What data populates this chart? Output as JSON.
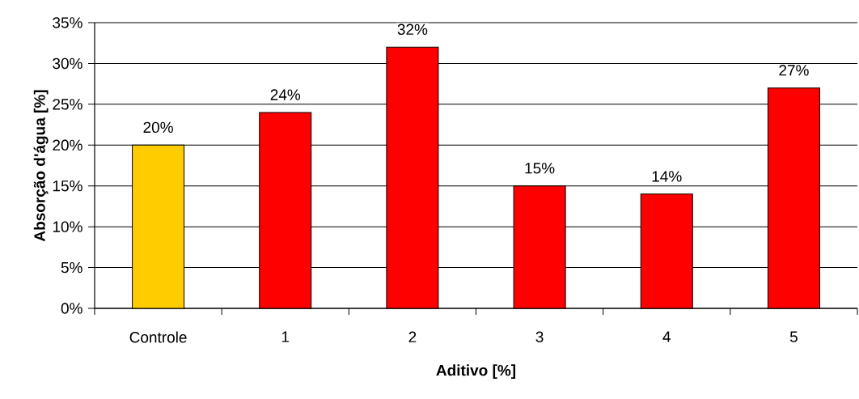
{
  "chart_data": {
    "type": "bar",
    "xlabel": "Aditivo [%]",
    "ylabel": "Absorção d'água  [%]",
    "categories": [
      "Controle",
      "1",
      "2",
      "3",
      "4",
      "5"
    ],
    "values": [
      20,
      24,
      32,
      15,
      14,
      27
    ],
    "colors": [
      "#ffcc00",
      "#ff0000",
      "#ff0000",
      "#ff0000",
      "#ff0000",
      "#ff0000"
    ],
    "value_labels": [
      "20%",
      "24%",
      "32%",
      "15%",
      "14%",
      "27%"
    ],
    "ylim": [
      0,
      35
    ],
    "yticks": [
      {
        "value": 0,
        "label": "0%"
      },
      {
        "value": 5,
        "label": "5%"
      },
      {
        "value": 10,
        "label": "10%"
      },
      {
        "value": 15,
        "label": "15%"
      },
      {
        "value": 20,
        "label": "20%"
      },
      {
        "value": 25,
        "label": "25%"
      },
      {
        "value": 30,
        "label": "30%"
      },
      {
        "value": 35,
        "label": "35%"
      }
    ],
    "grid": "y"
  }
}
